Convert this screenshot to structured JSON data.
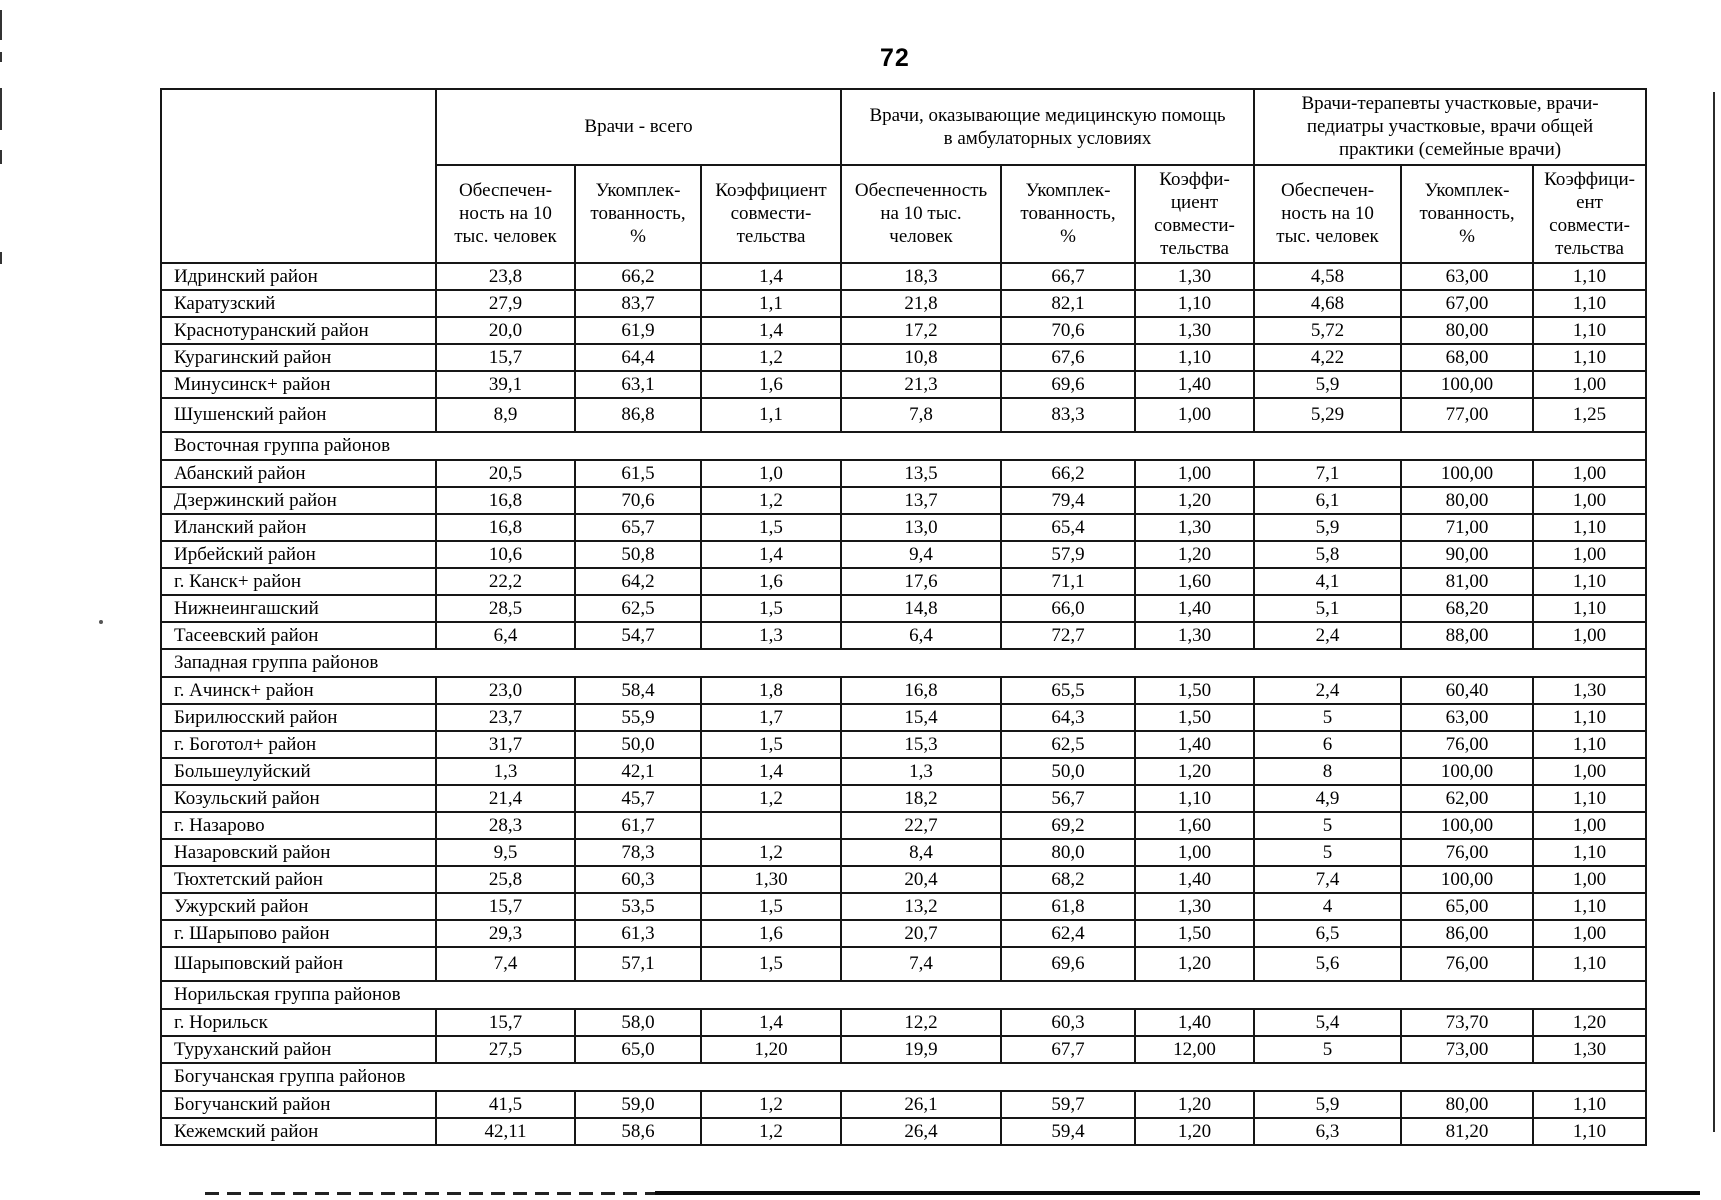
{
  "page": {
    "number": "72"
  },
  "table": {
    "column_groups": [
      {
        "label": "Врачи - всего"
      },
      {
        "label": "Врачи, оказывающие медицинскую помощь\nв амбулаторных условиях"
      },
      {
        "label": "Врачи-терапевты участковые, врачи-\nпедиатры участковые, врачи общей\nпрактики (семейные врачи)"
      }
    ],
    "sub_headers": [
      "Обеспечен-\nность на 10\nтыс. человек",
      "Укомплек-\nтованность,\n%",
      "Коэффициент\nсовмести-\nтельства",
      "Обеспеченность\nна 10 тыс.\nчеловек",
      "Укомплек-\nтованность,\n%",
      "Коэффи-\nциент\nсовмести-\nтельства",
      "Обеспечен-\nность на 10\nтыс. человек",
      "Укомплек-\nтованность,\n%",
      "Коэффици-\nент\nсовмести-\nтельства"
    ],
    "rows": [
      {
        "type": "data",
        "name": "Идринский район",
        "values": [
          "23,8",
          "66,2",
          "1,4",
          "18,3",
          "66,7",
          "1,30",
          "4,58",
          "63,00",
          "1,10"
        ]
      },
      {
        "type": "data",
        "name": "Каратузский",
        "values": [
          "27,9",
          "83,7",
          "1,1",
          "21,8",
          "82,1",
          "1,10",
          "4,68",
          "67,00",
          "1,10"
        ]
      },
      {
        "type": "data",
        "name": "Краснотуранский район",
        "values": [
          "20,0",
          "61,9",
          "1,4",
          "17,2",
          "70,6",
          "1,30",
          "5,72",
          "80,00",
          "1,10"
        ]
      },
      {
        "type": "data",
        "name": "Курагинский район",
        "values": [
          "15,7",
          "64,4",
          "1,2",
          "10,8",
          "67,6",
          "1,10",
          "4,22",
          "68,00",
          "1,10"
        ]
      },
      {
        "type": "data",
        "name": "Минусинск+ район",
        "values": [
          "39,1",
          "63,1",
          "1,6",
          "21,3",
          "69,6",
          "1,40",
          "5,9",
          "100,00",
          "1,00"
        ]
      },
      {
        "type": "data",
        "tall": true,
        "name": "Шушенский район",
        "values": [
          "8,9",
          "86,8",
          "1,1",
          "7,8",
          "83,3",
          "1,00",
          "5,29",
          "77,00",
          "1,25"
        ]
      },
      {
        "type": "group",
        "name": "Восточная группа районов"
      },
      {
        "type": "data",
        "name": "Абанский район",
        "values": [
          "20,5",
          "61,5",
          "1,0",
          "13,5",
          "66,2",
          "1,00",
          "7,1",
          "100,00",
          "1,00"
        ]
      },
      {
        "type": "data",
        "name": "Дзержинский район",
        "values": [
          "16,8",
          "70,6",
          "1,2",
          "13,7",
          "79,4",
          "1,20",
          "6,1",
          "80,00",
          "1,00"
        ]
      },
      {
        "type": "data",
        "name": "Иланский район",
        "values": [
          "16,8",
          "65,7",
          "1,5",
          "13,0",
          "65,4",
          "1,30",
          "5,9",
          "71,00",
          "1,10"
        ]
      },
      {
        "type": "data",
        "name": "Ирбейский район",
        "values": [
          "10,6",
          "50,8",
          "1,4",
          "9,4",
          "57,9",
          "1,20",
          "5,8",
          "90,00",
          "1,00"
        ]
      },
      {
        "type": "data",
        "name": "г. Канск+ район",
        "values": [
          "22,2",
          "64,2",
          "1,6",
          "17,6",
          "71,1",
          "1,60",
          "4,1",
          "81,00",
          "1,10"
        ]
      },
      {
        "type": "data",
        "name": "Нижнеингашский",
        "values": [
          "28,5",
          "62,5",
          "1,5",
          "14,8",
          "66,0",
          "1,40",
          "5,1",
          "68,20",
          "1,10"
        ]
      },
      {
        "type": "data",
        "name": "Тасеевский район",
        "values": [
          "6,4",
          "54,7",
          "1,3",
          "6,4",
          "72,7",
          "1,30",
          "2,4",
          "88,00",
          "1,00"
        ]
      },
      {
        "type": "group",
        "name": "Западная группа районов"
      },
      {
        "type": "data",
        "name": "г. Ачинск+ район",
        "values": [
          "23,0",
          "58,4",
          "1,8",
          "16,8",
          "65,5",
          "1,50",
          "2,4",
          "60,40",
          "1,30"
        ]
      },
      {
        "type": "data",
        "name": "Бирилюсский район",
        "values": [
          "23,7",
          "55,9",
          "1,7",
          "15,4",
          "64,3",
          "1,50",
          "5",
          "63,00",
          "1,10"
        ]
      },
      {
        "type": "data",
        "name": "г. Боготол+ район",
        "values": [
          "31,7",
          "50,0",
          "1,5",
          "15,3",
          "62,5",
          "1,40",
          "6",
          "76,00",
          "1,10"
        ]
      },
      {
        "type": "data",
        "name": "Большеулуйский",
        "values": [
          "1,3",
          "42,1",
          "1,4",
          "1,3",
          "50,0",
          "1,20",
          "8",
          "100,00",
          "1,00"
        ]
      },
      {
        "type": "data",
        "name": "Козульский район",
        "values": [
          "21,4",
          "45,7",
          "1,2",
          "18,2",
          "56,7",
          "1,10",
          "4,9",
          "62,00",
          "1,10"
        ]
      },
      {
        "type": "data",
        "name": "г. Назарово",
        "values": [
          "28,3",
          "61,7",
          "",
          "22,7",
          "69,2",
          "1,60",
          "5",
          "100,00",
          "1,00"
        ]
      },
      {
        "type": "data",
        "name": "Назаровский район",
        "values": [
          "9,5",
          "78,3",
          "1,2",
          "8,4",
          "80,0",
          "1,00",
          "5",
          "76,00",
          "1,10"
        ]
      },
      {
        "type": "data",
        "name": "Тюхтетский район",
        "values": [
          "25,8",
          "60,3",
          "1,30",
          "20,4",
          "68,2",
          "1,40",
          "7,4",
          "100,00",
          "1,00"
        ]
      },
      {
        "type": "data",
        "name": "Ужурский район",
        "values": [
          "15,7",
          "53,5",
          "1,5",
          "13,2",
          "61,8",
          "1,30",
          "4",
          "65,00",
          "1,10"
        ]
      },
      {
        "type": "data",
        "name": "г. Шарыпово район",
        "values": [
          "29,3",
          "61,3",
          "1,6",
          "20,7",
          "62,4",
          "1,50",
          "6,5",
          "86,00",
          "1,00"
        ]
      },
      {
        "type": "data",
        "tall": true,
        "name": "Шарыповский район",
        "values": [
          "7,4",
          "57,1",
          "1,5",
          "7,4",
          "69,6",
          "1,20",
          "5,6",
          "76,00",
          "1,10"
        ]
      },
      {
        "type": "group",
        "name": "Норильская группа районов"
      },
      {
        "type": "data",
        "name": "г. Норильск",
        "values": [
          "15,7",
          "58,0",
          "1,4",
          "12,2",
          "60,3",
          "1,40",
          "5,4",
          "73,70",
          "1,20"
        ]
      },
      {
        "type": "data",
        "name": "Туруханский район",
        "values": [
          "27,5",
          "65,0",
          "1,20",
          "19,9",
          "67,7",
          "12,00",
          "5",
          "73,00",
          "1,30"
        ]
      },
      {
        "type": "group",
        "name": "Богучанская группа районов"
      },
      {
        "type": "data",
        "name": "Богучанский район",
        "values": [
          "41,5",
          "59,0",
          "1,2",
          "26,1",
          "59,7",
          "1,20",
          "5,9",
          "80,00",
          "1,10"
        ]
      },
      {
        "type": "data",
        "name": "Кежемский район",
        "values": [
          "42,11",
          "58,6",
          "1,2",
          "26,4",
          "59,4",
          "1,20",
          "6,3",
          "81,20",
          "1,10"
        ]
      }
    ]
  }
}
